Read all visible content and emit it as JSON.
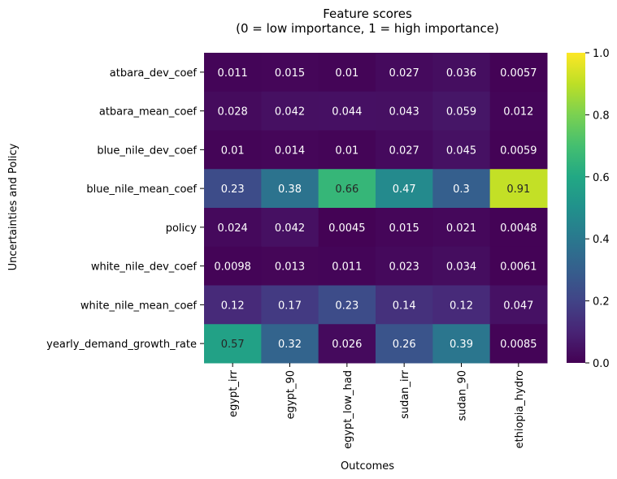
{
  "chart_data": {
    "type": "heatmap",
    "title_lines": [
      "Feature scores",
      "(0 = low importance, 1 = high importance)"
    ],
    "xlabel": "Outcomes",
    "ylabel": "Uncertainties and Policy",
    "columns": [
      "egypt_irr",
      "egypt_90",
      "egypt_low_had",
      "sudan_irr",
      "sudan_90",
      "ethiopia_hydro"
    ],
    "rows": [
      "atbara_dev_coef",
      "atbara_mean_coef",
      "blue_nile_dev_coef",
      "blue_nile_mean_coef",
      "policy",
      "white_nile_dev_coef",
      "white_nile_mean_coef",
      "yearly_demand_growth_rate"
    ],
    "values": [
      [
        0.011,
        0.015,
        0.01,
        0.027,
        0.036,
        0.0057
      ],
      [
        0.028,
        0.042,
        0.044,
        0.043,
        0.059,
        0.012
      ],
      [
        0.01,
        0.014,
        0.01,
        0.027,
        0.045,
        0.0059
      ],
      [
        0.23,
        0.38,
        0.66,
        0.47,
        0.3,
        0.91
      ],
      [
        0.024,
        0.042,
        0.0045,
        0.015,
        0.021,
        0.0048
      ],
      [
        0.0098,
        0.013,
        0.011,
        0.023,
        0.034,
        0.0061
      ],
      [
        0.12,
        0.17,
        0.23,
        0.14,
        0.12,
        0.047
      ],
      [
        0.57,
        0.32,
        0.026,
        0.26,
        0.39,
        0.0085
      ]
    ],
    "labels": [
      [
        "0.011",
        "0.015",
        "0.01",
        "0.027",
        "0.036",
        "0.0057"
      ],
      [
        "0.028",
        "0.042",
        "0.044",
        "0.043",
        "0.059",
        "0.012"
      ],
      [
        "0.01",
        "0.014",
        "0.01",
        "0.027",
        "0.045",
        "0.0059"
      ],
      [
        "0.23",
        "0.38",
        "0.66",
        "0.47",
        "0.3",
        "0.91"
      ],
      [
        "0.024",
        "0.042",
        "0.0045",
        "0.015",
        "0.021",
        "0.0048"
      ],
      [
        "0.0098",
        "0.013",
        "0.011",
        "0.023",
        "0.034",
        "0.0061"
      ],
      [
        "0.12",
        "0.17",
        "0.23",
        "0.14",
        "0.12",
        "0.047"
      ],
      [
        "0.57",
        "0.32",
        "0.026",
        "0.26",
        "0.39",
        "0.0085"
      ]
    ],
    "colormap": "viridis",
    "vmin": 0,
    "vmax": 1,
    "colorbar_ticks": [
      "0.0",
      "0.2",
      "0.4",
      "0.6",
      "0.8",
      "1.0"
    ],
    "colorbar_tick_values": [
      0,
      0.2,
      0.4,
      0.6,
      0.8,
      1.0
    ]
  }
}
